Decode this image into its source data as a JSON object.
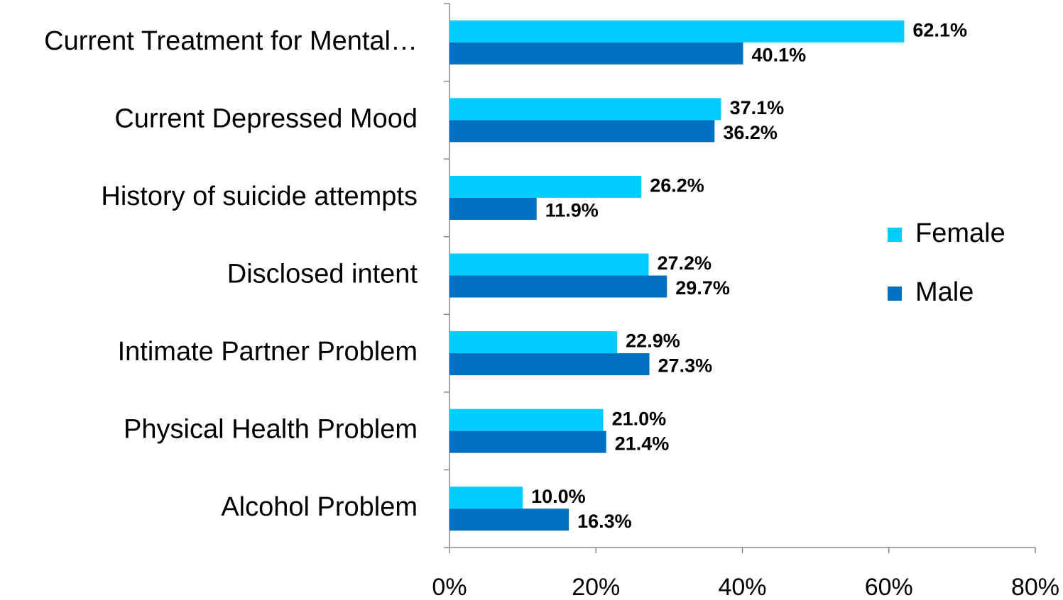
{
  "chart_data": {
    "type": "barh",
    "categories": [
      "Current Treatment for Mental…",
      "Current Depressed Mood",
      "History of suicide attempts",
      "Disclosed intent",
      "Intimate Partner Problem",
      "Physical Health Problem",
      "Alcohol Problem"
    ],
    "series": [
      {
        "name": "Female",
        "color": "#00ccff",
        "values": [
          62.1,
          37.1,
          26.2,
          27.2,
          22.9,
          21.0,
          10.0
        ],
        "value_labels": [
          "62.1%",
          "37.1%",
          "26.2%",
          "27.2%",
          "22.9%",
          "21.0%",
          "10.0%"
        ]
      },
      {
        "name": "Male",
        "color": "#0070c0",
        "values": [
          40.1,
          36.2,
          11.9,
          29.7,
          27.3,
          21.4,
          16.3
        ],
        "value_labels": [
          "40.1%",
          "36.2%",
          "11.9%",
          "29.7%",
          "27.3%",
          "21.4%",
          "16.3%"
        ]
      }
    ],
    "xlim": [
      0,
      80
    ],
    "xticks": [
      {
        "value": 0,
        "label": "0%"
      },
      {
        "value": 20,
        "label": "20%"
      },
      {
        "value": 40,
        "label": "40%"
      },
      {
        "value": 60,
        "label": "60%"
      },
      {
        "value": 80,
        "label": "80%"
      }
    ],
    "legend": "right"
  }
}
